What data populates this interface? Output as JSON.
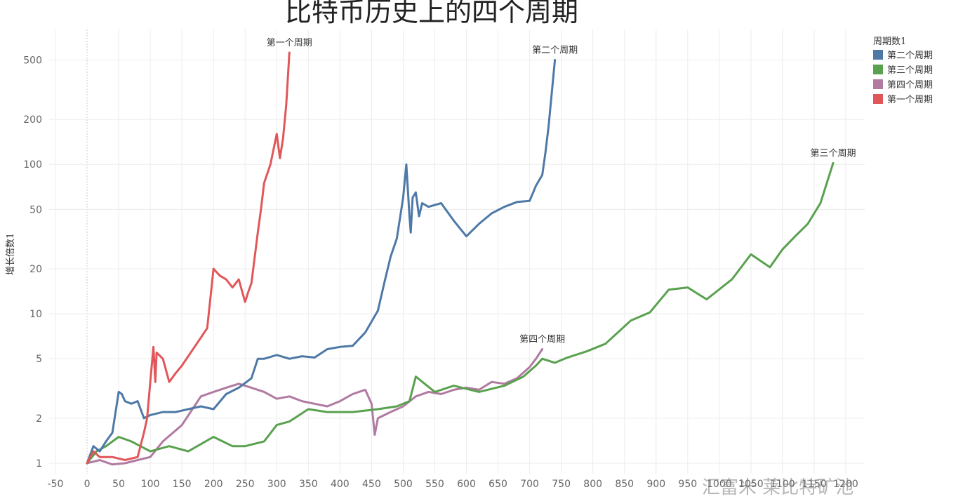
{
  "chart_data": {
    "type": "line",
    "title": "比特币历史上的四个周期",
    "ylabel": "增长倍数1",
    "legend_title": "周期数1",
    "legend_position": "top-right",
    "y_scale": "log",
    "ylim": [
      0.85,
      800
    ],
    "xlim": [
      -60,
      1230
    ],
    "grid": true,
    "x_ticks": [
      -50,
      0,
      50,
      100,
      150,
      200,
      250,
      300,
      350,
      400,
      450,
      500,
      550,
      600,
      650,
      700,
      750,
      800,
      850,
      900,
      950,
      1000,
      1050,
      1100,
      1150,
      1200
    ],
    "y_ticks": [
      1,
      2,
      5,
      10,
      20,
      50,
      100,
      200,
      500
    ],
    "series": [
      {
        "name": "第二个周期",
        "color": "#4e79a7",
        "label": "第二个周期",
        "x": [
          0,
          10,
          20,
          30,
          40,
          50,
          55,
          60,
          70,
          80,
          90,
          100,
          120,
          140,
          160,
          180,
          200,
          220,
          240,
          260,
          270,
          280,
          300,
          320,
          340,
          360,
          380,
          400,
          420,
          440,
          460,
          470,
          480,
          490,
          500,
          505,
          510,
          512,
          515,
          520,
          525,
          530,
          540,
          560,
          580,
          600,
          620,
          640,
          660,
          680,
          700,
          710,
          720,
          725,
          730,
          735,
          740
        ],
        "values": [
          1,
          1.3,
          1.2,
          1.4,
          1.6,
          3.0,
          2.9,
          2.6,
          2.5,
          2.6,
          2.0,
          2.1,
          2.2,
          2.2,
          2.3,
          2.4,
          2.3,
          2.9,
          3.2,
          3.7,
          5.0,
          5.0,
          5.3,
          5.0,
          5.2,
          5.1,
          5.8,
          6.0,
          6.1,
          7.5,
          10.5,
          16,
          24,
          32,
          60,
          100,
          45,
          35,
          60,
          65,
          45,
          55,
          52,
          55,
          42,
          33,
          40,
          47,
          52,
          56,
          57,
          72,
          85,
          120,
          180,
          300,
          500
        ]
      },
      {
        "name": "第三个周期",
        "color": "#59a14f",
        "label": "第三个周期",
        "x": [
          0,
          15,
          30,
          50,
          70,
          100,
          130,
          160,
          200,
          230,
          250,
          280,
          300,
          320,
          350,
          380,
          420,
          460,
          490,
          510,
          520,
          550,
          580,
          620,
          660,
          690,
          710,
          720,
          740,
          760,
          790,
          820,
          860,
          890,
          920,
          950,
          980,
          1020,
          1050,
          1080,
          1100,
          1120,
          1140,
          1160,
          1180
        ],
        "values": [
          1,
          1.2,
          1.3,
          1.5,
          1.4,
          1.2,
          1.3,
          1.2,
          1.5,
          1.3,
          1.3,
          1.4,
          1.8,
          1.9,
          2.3,
          2.2,
          2.2,
          2.3,
          2.4,
          2.6,
          3.8,
          3.0,
          3.3,
          3.0,
          3.3,
          3.8,
          4.5,
          5.0,
          4.7,
          5.1,
          5.6,
          6.3,
          9.0,
          10.2,
          14.5,
          15.0,
          12.5,
          17.0,
          25.0,
          20.5,
          27.0,
          33.0,
          40.0,
          55.0,
          102.0
        ]
      },
      {
        "name": "第四个周期",
        "color": "#b07aa1",
        "label": "第四个周期",
        "x": [
          0,
          20,
          40,
          60,
          80,
          100,
          120,
          150,
          180,
          200,
          220,
          240,
          260,
          280,
          300,
          320,
          340,
          360,
          380,
          400,
          420,
          440,
          450,
          455,
          460,
          480,
          500,
          520,
          540,
          560,
          580,
          600,
          620,
          640,
          660,
          680,
          700,
          710,
          720
        ],
        "values": [
          1,
          1.05,
          0.98,
          1.0,
          1.05,
          1.1,
          1.4,
          1.8,
          2.8,
          3.0,
          3.2,
          3.4,
          3.2,
          3.0,
          2.7,
          2.8,
          2.6,
          2.5,
          2.4,
          2.6,
          2.9,
          3.1,
          2.5,
          1.55,
          2.0,
          2.2,
          2.4,
          2.8,
          3.0,
          2.9,
          3.1,
          3.2,
          3.1,
          3.5,
          3.4,
          3.7,
          4.4,
          5.0,
          5.8
        ]
      },
      {
        "name": "第一个周期",
        "color": "#e15759",
        "label": "第一个周期",
        "x": [
          0,
          10,
          20,
          40,
          60,
          80,
          90,
          95,
          100,
          105,
          108,
          110,
          120,
          130,
          140,
          150,
          170,
          190,
          200,
          210,
          220,
          230,
          240,
          250,
          255,
          260,
          270,
          275,
          280,
          290,
          300,
          305,
          310,
          315,
          320
        ],
        "values": [
          1,
          1.2,
          1.1,
          1.1,
          1.05,
          1.1,
          1.6,
          2.0,
          3.5,
          6.0,
          3.5,
          5.5,
          5.0,
          3.5,
          4.0,
          4.5,
          6.0,
          8.0,
          20.0,
          18.0,
          17.0,
          15.0,
          17.0,
          12.0,
          14.0,
          16.0,
          35.0,
          50.0,
          75.0,
          100.0,
          160.0,
          110.0,
          150.0,
          250.0,
          560.0
        ]
      }
    ]
  },
  "watermark": "汇富米 莱比特矿池"
}
